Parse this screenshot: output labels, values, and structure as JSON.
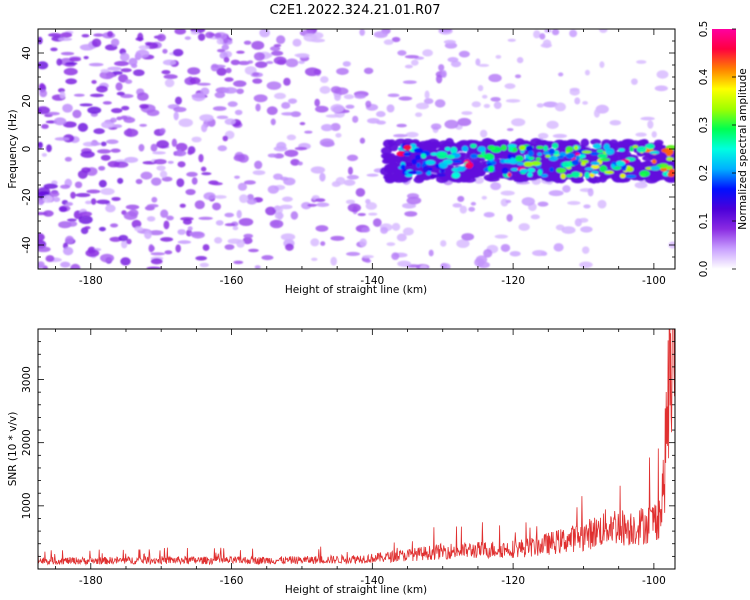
{
  "title": "C2E1.2022.324.21.01.R07",
  "chart_data": [
    {
      "type": "heatmap",
      "xlabel": "Height of straight line (km)",
      "ylabel": "Frequency (Hz)",
      "xlim": [
        -187.5,
        -97
      ],
      "ylim": [
        -50,
        50
      ],
      "x_ticks": [
        -180,
        -160,
        -140,
        -120,
        -100
      ],
      "y_ticks": [
        -40,
        -20,
        0,
        20,
        40
      ],
      "colorbar": {
        "label": "Normalized spectral amplitude",
        "range": [
          0.0,
          0.5
        ],
        "ticks": [
          "0.0",
          "0.1",
          "0.2",
          "0.3",
          "0.4",
          "0.5"
        ],
        "colors": [
          "#ffffff",
          "#c9a0ff",
          "#8a2be2",
          "#4b00d9",
          "#0010ff",
          "#00b0ff",
          "#00ffe0",
          "#00ff50",
          "#a0ff00",
          "#ffff00",
          "#ff8000",
          "#ff0040",
          "#ff00a0"
        ]
      },
      "features": [
        {
          "name": "noise",
          "x_range": [
            -187.5,
            -140
          ],
          "y_range": [
            -50,
            50
          ],
          "level": 0.07
        },
        {
          "name": "echo band",
          "x_range": [
            -138,
            -97
          ],
          "y_center": -5,
          "y_halfwidth": 8,
          "peak": 0.5
        }
      ]
    },
    {
      "type": "line",
      "xlabel": "Height of straight line (km)",
      "ylabel": "SNR (10 * v/v)",
      "xlim": [
        -187.5,
        -97
      ],
      "ylim": [
        0,
        3800
      ],
      "x_ticks": [
        -180,
        -160,
        -140,
        -120,
        -100
      ],
      "y_ticks": [
        1000,
        2000,
        3000
      ],
      "line_color": "#e03030",
      "x": [
        -187.5,
        -180,
        -170,
        -160,
        -150,
        -145,
        -140,
        -135,
        -130,
        -125,
        -120,
        -117,
        -115,
        -112,
        -110,
        -108,
        -106,
        -104,
        -102,
        -100,
        -99,
        -98.5,
        -98,
        -97.5,
        -97
      ],
      "values": [
        130,
        130,
        140,
        135,
        140,
        150,
        170,
        220,
        280,
        300,
        320,
        350,
        400,
        470,
        520,
        600,
        700,
        650,
        680,
        750,
        900,
        1500,
        2700,
        3000,
        3700
      ]
    }
  ]
}
